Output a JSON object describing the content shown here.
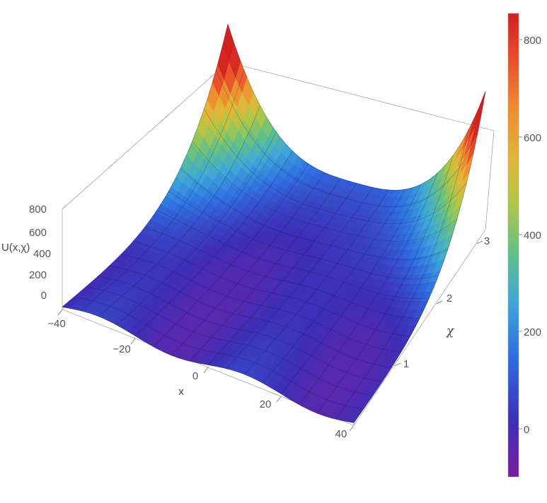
{
  "chart_data": {
    "type": "surface3d",
    "z_label": "U(x,χ)",
    "x_label": "x",
    "y_label": "χ",
    "x_range": [
      -40,
      40
    ],
    "y_range": [
      0,
      3.2
    ],
    "z_range": [
      -100,
      850
    ],
    "x_ticks": [
      "−40",
      "−20",
      "0",
      "20",
      "40"
    ],
    "y_ticks": [
      "1",
      "2",
      "3"
    ],
    "z_ticks": [
      "800",
      "600",
      "400",
      "200",
      "0"
    ],
    "colorbar": {
      "range": [
        -100,
        850
      ],
      "ticks": [
        "800",
        "600",
        "400",
        "200",
        "0"
      ],
      "colors": [
        "#7a1d9e",
        "#3d2fb8",
        "#2f6fe0",
        "#3fa8d8",
        "#5fbf8a",
        "#a8c84a",
        "#e0b838",
        "#f08a30",
        "#e8442a",
        "#d02020"
      ]
    },
    "surface_samples": {
      "chi_values": [
        0,
        1,
        2,
        3
      ],
      "x_values": [
        -40,
        -30,
        -20,
        -10,
        0,
        10,
        20,
        30,
        40
      ],
      "U_at_chi_0": [
        0,
        -40,
        0,
        40,
        0,
        -40,
        0,
        40,
        0
      ],
      "U_at_chi_3": [
        830,
        200,
        40,
        -20,
        0,
        -20,
        40,
        200,
        830
      ]
    }
  }
}
